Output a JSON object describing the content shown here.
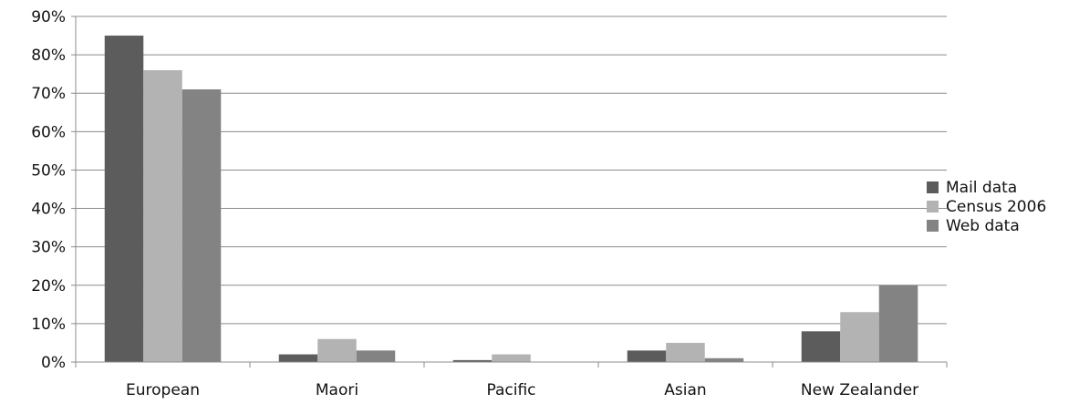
{
  "chart_data": {
    "type": "bar",
    "title": "",
    "xlabel": "",
    "ylabel": "",
    "categories": [
      "European",
      "Maori",
      "Pacific",
      "Asian",
      "New Zealander"
    ],
    "series": [
      {
        "name": "Mail data",
        "values": [
          85,
          2,
          0.5,
          3,
          8
        ],
        "color": "#5c5c5c"
      },
      {
        "name": "Census 2006",
        "values": [
          76,
          6,
          2,
          5,
          13
        ],
        "color": "#b3b3b3"
      },
      {
        "name": "Web data",
        "values": [
          71,
          3,
          0,
          1,
          20
        ],
        "color": "#838383"
      }
    ],
    "ylim": [
      0,
      90
    ],
    "yticks": [
      "0%",
      "10%",
      "20%",
      "30%",
      "40%",
      "50%",
      "60%",
      "70%",
      "80%",
      "90%"
    ],
    "grid": true,
    "legend_position": "right",
    "gridline_color": "#8c8c8c",
    "axis_color": "#8c8c8c"
  }
}
